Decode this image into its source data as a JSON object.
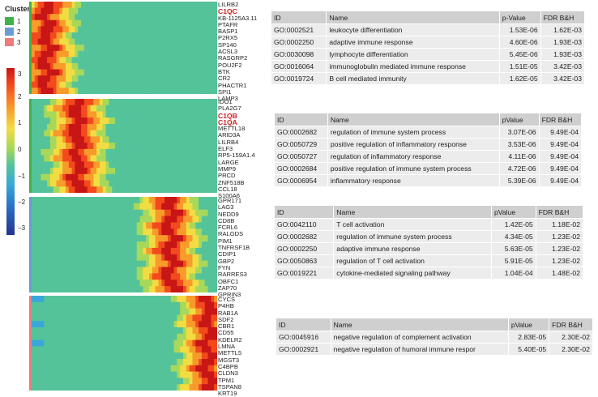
{
  "legend": {
    "title": "Cluster",
    "clusters": [
      {
        "label": "1",
        "color": "#3fb24a"
      },
      {
        "label": "2",
        "color": "#6a9cd4"
      },
      {
        "label": "3",
        "color": "#f07a7a"
      }
    ],
    "scale_ticks": [
      "3",
      "2",
      "1",
      "0",
      "−1",
      "−2",
      "−3"
    ]
  },
  "blocks": [
    {
      "cluster": "1",
      "hot_position": 0.08,
      "genes": [
        "LILRB2",
        "C1QC",
        "KB-1125A3.11",
        "PTAFR",
        "BASP1",
        "P2RX5",
        "SP140",
        "ACSL3",
        "RASGRP2",
        "POU2F2",
        "BTK",
        "CR2",
        "PHACTR1",
        "SPI1",
        "LAMP3"
      ],
      "highlight": [
        "C1QC"
      ]
    },
    {
      "cluster": "1",
      "hot_position": 0.25,
      "genes": [
        "IDO1",
        "PLA2G7",
        "C1QB",
        "C1QA",
        "METTL18",
        "ARID3A",
        "LILRB4",
        "ELF3",
        "RP5-159A1.4",
        "LARGE",
        "MMP9",
        "PRCD",
        "ZNF518B",
        "CCL18",
        "S100A6"
      ],
      "highlight": [
        "C1QB",
        "C1QA"
      ]
    },
    {
      "cluster": "2",
      "hot_position": 0.75,
      "genes": [
        "GPR171",
        "LAG3",
        "NEDD9",
        "CD8B",
        "FCRL6",
        "RALGDS",
        "PIM1",
        "TNFRSF1B",
        "CDIP1",
        "GBP2",
        "FYN",
        "RARRES3",
        "OBFC1",
        "ZAP70",
        "GPRIN3"
      ],
      "highlight": []
    },
    {
      "cluster": "3",
      "hot_position": 0.95,
      "genes": [
        "CYCS",
        "P4HB",
        "RAB1A",
        "SDF2",
        "CBR1",
        "CD55",
        "KDELR2",
        "LMNA",
        "METTL5",
        "MGST3",
        "C4BPB",
        "CLDN3",
        "TPM1",
        "TSPAN8",
        "KRT19"
      ],
      "highlight": []
    }
  ],
  "tables": [
    {
      "headers": [
        "ID",
        "Name",
        "p-Value",
        "FDR B&H"
      ],
      "rows": [
        [
          "GO:0002521",
          "leukocyte differentiation",
          "1.53E-06",
          "1.62E-03"
        ],
        [
          "GO:0002250",
          "adaptive immune response",
          "4.60E-06",
          "1.93E-03"
        ],
        [
          "GO:0030098",
          "lymphocyte differentiation",
          "5.45E-06",
          "1.93E-03"
        ],
        [
          "GO:0016064",
          "immunoglobulin mediated immune response",
          "1.51E-05",
          "3.42E-03"
        ],
        [
          "GO:0019724",
          "B cell mediated immunity",
          "1.62E-05",
          "3.42E-03"
        ]
      ]
    },
    {
      "headers": [
        "ID",
        "Name",
        "pValue",
        "FDR B&H"
      ],
      "rows": [
        [
          "GO:0002682",
          "regulation of immune system process",
          "3.07E-06",
          "9.49E-04"
        ],
        [
          "GO:0050729",
          "positive regulation of inflammatory response",
          "3.53E-06",
          "9.49E-04"
        ],
        [
          "GO:0050727",
          "regulation of inflammatory response",
          "4.11E-06",
          "9.49E-04"
        ],
        [
          "GO:0002684",
          "positive regulation of immune system process",
          "4.72E-06",
          "9.49E-04"
        ],
        [
          "GO:0006954",
          "inflammatory response",
          "5.39E-06",
          "9.49E-04"
        ]
      ]
    },
    {
      "headers": [
        "ID",
        "Name",
        "pValue",
        "FDR B&H"
      ],
      "rows": [
        [
          "GO:0042110",
          "T cell activation",
          "1.42E-05",
          "1.18E-02"
        ],
        [
          "GO:0002682",
          "regulation of immune system process",
          "4.34E-05",
          "1.23E-02"
        ],
        [
          "GO:0002250",
          "adaptive immune response",
          "5.63E-05",
          "1.23E-02"
        ],
        [
          "GO:0050863",
          "regulation of T cell activation",
          "5.91E-05",
          "1.23E-02"
        ],
        [
          "GO:0019221",
          "cytokine-mediated signaling pathway",
          "1.04E-04",
          "1.48E-02"
        ]
      ]
    },
    {
      "headers": [
        "ID",
        "Name",
        "pValue",
        "FDR B&H"
      ],
      "rows": [
        [
          "GO:0045916",
          "negative regulation of complement activation",
          "2.83E-05",
          "2.30E-02"
        ],
        [
          "GO:0002921",
          "negative regulation of humoral immune respor",
          "5.40E-05",
          "2.30E-02"
        ]
      ]
    }
  ]
}
